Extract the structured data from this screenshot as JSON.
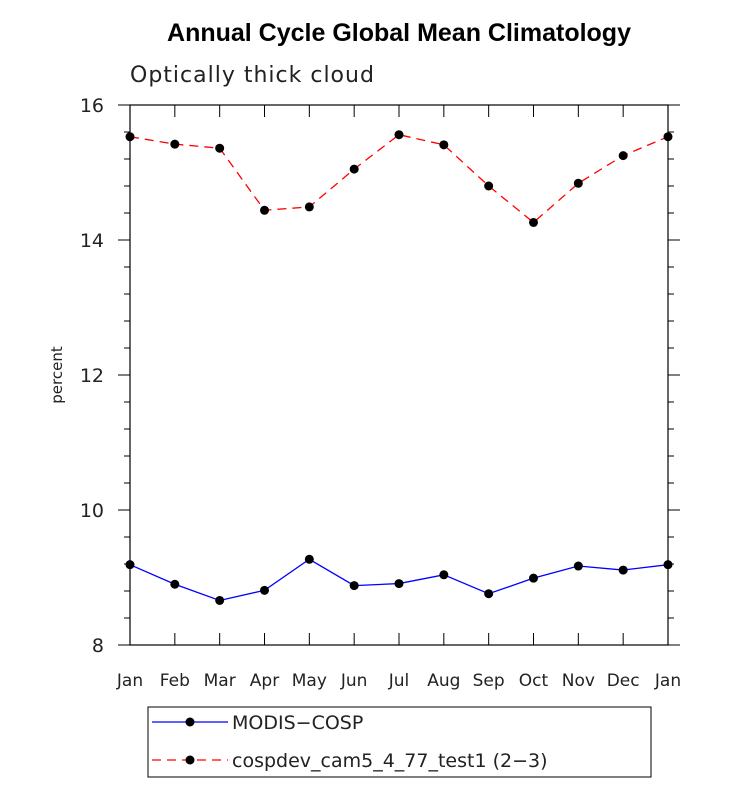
{
  "chart_data": {
    "type": "line",
    "title": "Annual Cycle Global Mean Climatology",
    "subtitle": "Optically thick cloud",
    "xlabel": "",
    "ylabel": "percent",
    "categories": [
      "Jan",
      "Feb",
      "Mar",
      "Apr",
      "May",
      "Jun",
      "Jul",
      "Aug",
      "Sep",
      "Oct",
      "Nov",
      "Dec",
      "Jan"
    ],
    "ylim": [
      8,
      16
    ],
    "yticks": [
      8,
      10,
      12,
      14,
      16
    ],
    "series": [
      {
        "name": "MODIS−COSP",
        "color": "#0000ff",
        "dash": "solid",
        "values": [
          9.19,
          8.9,
          8.66,
          8.81,
          9.27,
          8.88,
          8.91,
          9.04,
          8.76,
          8.99,
          9.17,
          9.11,
          9.19
        ]
      },
      {
        "name": "cospdev_cam5_4_77_test1 (2−3)",
        "color": "#ff0000",
        "dash": "dashed",
        "values": [
          15.53,
          15.42,
          15.36,
          14.44,
          14.49,
          15.05,
          15.56,
          15.41,
          14.8,
          14.26,
          14.84,
          15.25,
          15.53
        ]
      }
    ],
    "legend_position": "bottom"
  }
}
